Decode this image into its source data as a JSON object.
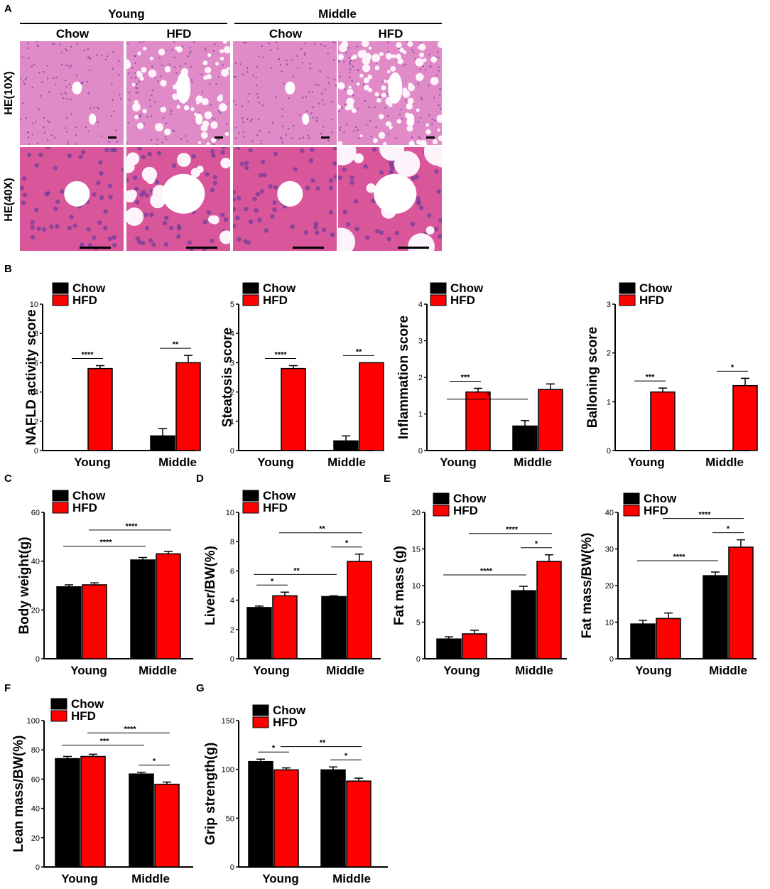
{
  "panel_letters": [
    "A",
    "B",
    "C",
    "D",
    "E",
    "F",
    "G"
  ],
  "histology": {
    "groups": [
      "Young",
      "Middle"
    ],
    "columns": [
      "Chow",
      "HFD",
      "Chow",
      "HFD"
    ],
    "rows": [
      "HE(10X)",
      "HE(40X)"
    ]
  },
  "colors": {
    "chow": "#000000",
    "hfd": "#ff0000",
    "tissue": "#d86fbe"
  },
  "chart_data": [
    {
      "id": "nas",
      "type": "bar",
      "panel": "B",
      "categories": [
        "Young",
        "Middle"
      ],
      "series": [
        {
          "name": "Chow",
          "values": [
            0,
            1.0
          ],
          "errors": [
            0,
            0.5
          ]
        },
        {
          "name": "HFD",
          "values": [
            5.6,
            6.0
          ],
          "errors": [
            0.2,
            0.5
          ]
        }
      ],
      "ylabel": "NAFLD activity score",
      "ylim": [
        0,
        10
      ],
      "yticks": [
        0,
        2,
        4,
        6,
        8,
        10
      ],
      "annotations": [
        {
          "label": "****",
          "from": "Young-Chow",
          "to": "Young-HFD"
        },
        {
          "label": "**",
          "from": "Middle-Chow",
          "to": "Middle-HFD"
        }
      ]
    },
    {
      "id": "steatosis",
      "type": "bar",
      "panel": "B",
      "categories": [
        "Young",
        "Middle"
      ],
      "series": [
        {
          "name": "Chow",
          "values": [
            0,
            0.33
          ],
          "errors": [
            0,
            0.17
          ]
        },
        {
          "name": "HFD",
          "values": [
            2.8,
            3.0
          ],
          "errors": [
            0.1,
            0
          ]
        }
      ],
      "ylabel": "Steatosis score",
      "ylim": [
        0,
        5
      ],
      "yticks": [
        0,
        1,
        2,
        3,
        4,
        5
      ],
      "annotations": [
        {
          "label": "****",
          "from": "Young-Chow",
          "to": "Young-HFD"
        },
        {
          "label": "**",
          "from": "Middle-Chow",
          "to": "Middle-HFD"
        }
      ]
    },
    {
      "id": "inflammation",
      "type": "bar",
      "panel": "B",
      "categories": [
        "Young",
        "Middle"
      ],
      "series": [
        {
          "name": "Chow",
          "values": [
            0,
            0.67
          ],
          "errors": [
            0,
            0.15
          ]
        },
        {
          "name": "HFD",
          "values": [
            1.6,
            1.67
          ],
          "errors": [
            0.1,
            0.15
          ]
        }
      ],
      "ylabel": "Inflammation score",
      "ylim": [
        0,
        4
      ],
      "yticks": [
        0,
        1,
        2,
        3,
        4
      ],
      "annotations": [
        {
          "label": "***",
          "from": "Young-Chow",
          "to": "Young-HFD"
        },
        {
          "label": "*",
          "from": "Young-Chow",
          "to": "Middle-Chow"
        }
      ]
    },
    {
      "id": "ballooning",
      "type": "bar",
      "panel": "B",
      "categories": [
        "Young",
        "Middle"
      ],
      "series": [
        {
          "name": "Chow",
          "values": [
            0,
            0
          ],
          "errors": [
            0,
            0
          ]
        },
        {
          "name": "HFD",
          "values": [
            1.2,
            1.33
          ],
          "errors": [
            0.08,
            0.15
          ]
        }
      ],
      "ylabel": "Balloning score",
      "ylim": [
        0,
        3
      ],
      "yticks": [
        0,
        1,
        2,
        3
      ],
      "annotations": [
        {
          "label": "***",
          "from": "Young-Chow",
          "to": "Young-HFD"
        },
        {
          "label": "*",
          "from": "Middle-Chow",
          "to": "Middle-HFD"
        }
      ]
    },
    {
      "id": "bodyweight",
      "type": "bar",
      "panel": "C",
      "categories": [
        "Young",
        "Middle"
      ],
      "series": [
        {
          "name": "Chow",
          "values": [
            29.5,
            40.5
          ],
          "errors": [
            0.8,
            1.0
          ]
        },
        {
          "name": "HFD",
          "values": [
            30.3,
            43.0
          ],
          "errors": [
            0.8,
            1.0
          ]
        }
      ],
      "ylabel": "Body weight(g)",
      "ylim": [
        0,
        60
      ],
      "yticks": [
        0,
        20,
        40,
        60
      ],
      "annotations": [
        {
          "label": "****",
          "from": "Young-Chow",
          "to": "Middle-Chow"
        },
        {
          "label": "****",
          "from": "Young-HFD",
          "to": "Middle-HFD"
        }
      ]
    },
    {
      "id": "liverbw",
      "type": "bar",
      "panel": "D",
      "categories": [
        "Young",
        "Middle"
      ],
      "series": [
        {
          "name": "Chow",
          "values": [
            3.5,
            4.25
          ],
          "errors": [
            0.1,
            0.05
          ]
        },
        {
          "name": "HFD",
          "values": [
            4.3,
            6.65
          ],
          "errors": [
            0.25,
            0.5
          ]
        }
      ],
      "ylabel": "Liver/BW(%)",
      "ylim": [
        0,
        10
      ],
      "yticks": [
        0,
        2,
        4,
        6,
        8,
        10
      ],
      "annotations": [
        {
          "label": "*",
          "from": "Young-Chow",
          "to": "Young-HFD"
        },
        {
          "label": "**",
          "from": "Young-Chow",
          "to": "Middle-Chow"
        },
        {
          "label": "*",
          "from": "Middle-Chow",
          "to": "Middle-HFD"
        },
        {
          "label": "**",
          "from": "Young-HFD",
          "to": "Middle-HFD"
        }
      ]
    },
    {
      "id": "fatmass",
      "type": "bar",
      "panel": "E",
      "categories": [
        "Young",
        "Middle"
      ],
      "series": [
        {
          "name": "Chow",
          "values": [
            2.7,
            9.3
          ],
          "errors": [
            0.3,
            0.6
          ]
        },
        {
          "name": "HFD",
          "values": [
            3.4,
            13.3
          ],
          "errors": [
            0.5,
            0.9
          ]
        }
      ],
      "ylabel": "Fat mass (g)",
      "ylim": [
        0,
        20
      ],
      "yticks": [
        0,
        5,
        10,
        15,
        20
      ],
      "annotations": [
        {
          "label": "****",
          "from": "Young-Chow",
          "to": "Middle-Chow"
        },
        {
          "label": "*",
          "from": "Middle-Chow",
          "to": "Middle-HFD"
        },
        {
          "label": "****",
          "from": "Young-HFD",
          "to": "Middle-HFD"
        }
      ]
    },
    {
      "id": "fatmassbw",
      "type": "bar",
      "panel": "E",
      "categories": [
        "Young",
        "Middle"
      ],
      "series": [
        {
          "name": "Chow",
          "values": [
            9.5,
            22.7
          ],
          "errors": [
            1.0,
            1.0
          ]
        },
        {
          "name": "HFD",
          "values": [
            11.0,
            30.5
          ],
          "errors": [
            1.5,
            2.0
          ]
        }
      ],
      "ylabel": "Fat mass/BW(%)",
      "ylim": [
        0,
        40
      ],
      "yticks": [
        0,
        10,
        20,
        30,
        40
      ],
      "annotations": [
        {
          "label": "****",
          "from": "Young-Chow",
          "to": "Middle-Chow"
        },
        {
          "label": "****",
          "from": "Young-HFD",
          "to": "Middle-HFD"
        },
        {
          "label": "*",
          "from": "Middle-Chow",
          "to": "Middle-HFD"
        }
      ]
    },
    {
      "id": "leanbw",
      "type": "bar",
      "panel": "F",
      "categories": [
        "Young",
        "Middle"
      ],
      "series": [
        {
          "name": "Chow",
          "values": [
            74,
            63.5
          ],
          "errors": [
            1.5,
            1.2
          ]
        },
        {
          "name": "HFD",
          "values": [
            75.5,
            56.5
          ],
          "errors": [
            1.5,
            1.5
          ]
        }
      ],
      "ylabel": "Lean mass/BW(%)",
      "ylim": [
        0,
        100
      ],
      "yticks": [
        0,
        20,
        40,
        60,
        80,
        100
      ],
      "annotations": [
        {
          "label": "***",
          "from": "Young-Chow",
          "to": "Middle-Chow"
        },
        {
          "label": "****",
          "from": "Young-HFD",
          "to": "Middle-HFD"
        },
        {
          "label": "*",
          "from": "Middle-Chow",
          "to": "Middle-HFD"
        }
      ]
    },
    {
      "id": "grip",
      "type": "bar",
      "panel": "G",
      "categories": [
        "Young",
        "Middle"
      ],
      "series": [
        {
          "name": "Chow",
          "values": [
            108,
            99.5
          ],
          "errors": [
            2.5,
            3
          ]
        },
        {
          "name": "HFD",
          "values": [
            99.5,
            88
          ],
          "errors": [
            2,
            3
          ]
        }
      ],
      "ylabel": "Grip strength(g)",
      "ylim": [
        0,
        150
      ],
      "yticks": [
        0,
        50,
        100,
        150
      ],
      "annotations": [
        {
          "label": "*",
          "from": "Young-Chow",
          "to": "Young-HFD"
        },
        {
          "label": "**",
          "from": "Young-HFD",
          "to": "Middle-HFD"
        },
        {
          "label": "*",
          "from": "Middle-Chow",
          "to": "Middle-HFD"
        }
      ]
    }
  ]
}
